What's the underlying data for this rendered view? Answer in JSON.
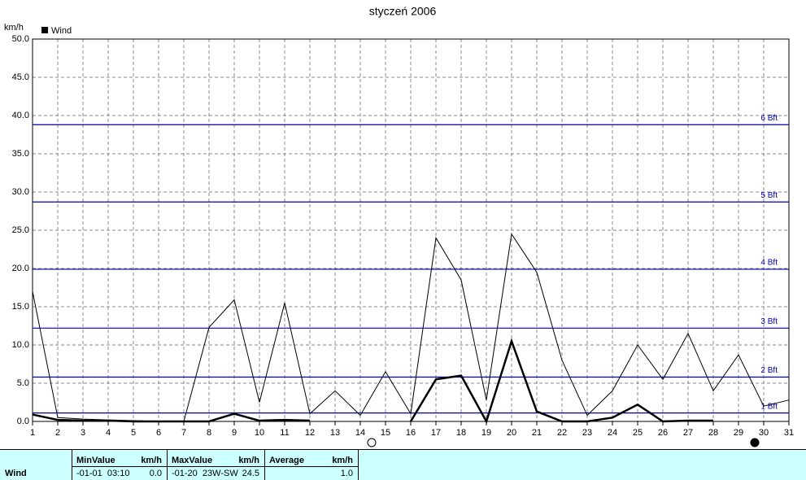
{
  "chart_data": {
    "type": "line",
    "title": "styczeń 2006",
    "y_label": "km/h",
    "x": [
      1,
      2,
      3,
      4,
      5,
      6,
      7,
      8,
      9,
      10,
      11,
      12,
      13,
      14,
      15,
      16,
      17,
      18,
      19,
      20,
      21,
      22,
      23,
      24,
      25,
      26,
      27,
      28,
      29,
      30,
      31
    ],
    "series": [
      {
        "name": "Wind",
        "color": "#000000",
        "values": [
          0.9,
          0.2,
          0.1,
          0.1,
          0,
          0,
          0,
          0,
          1.0,
          0.1,
          0.2,
          0.1,
          null,
          null,
          null,
          0,
          5.5,
          6.0,
          0,
          10.5,
          1.3,
          0,
          0,
          0.5,
          2.2,
          0,
          0.1,
          0.1,
          null,
          null,
          null
        ]
      },
      {
        "color": "#000000",
        "values": [
          17.0,
          0.5,
          0.3,
          0.2,
          0.1,
          0,
          0,
          12.3,
          15.9,
          2.5,
          15.5,
          1.0,
          4.0,
          0.8,
          6.5,
          1.0,
          24.0,
          18.5,
          2.8,
          24.5,
          19.5,
          8.0,
          0.8,
          4.0,
          10.0,
          5.5,
          11.5,
          4.0,
          8.7,
          2.0,
          2.8
        ]
      }
    ],
    "reference_lines": [
      {
        "value": 1.1,
        "label": "1 Bft"
      },
      {
        "value": 5.8,
        "label": "2 Bft"
      },
      {
        "value": 12.2,
        "label": "3 Bft"
      },
      {
        "value": 19.9,
        "label": "4 Bft"
      },
      {
        "value": 28.7,
        "label": "5 Bft"
      },
      {
        "value": 38.8,
        "label": "6 Bft"
      }
    ],
    "reference_color": "#0000a8",
    "xlim": [
      1,
      31
    ],
    "xticks": [
      1,
      2,
      3,
      4,
      5,
      6,
      7,
      8,
      9,
      10,
      11,
      12,
      13,
      14,
      15,
      16,
      17,
      18,
      19,
      20,
      21,
      22,
      23,
      24,
      25,
      26,
      27,
      28,
      29,
      30,
      31
    ],
    "ylim": [
      0,
      50
    ],
    "yticks": [
      {
        "value": 0,
        "label": "0.0"
      },
      {
        "value": 5,
        "label": "5.0"
      },
      {
        "value": 10,
        "label": "10.0"
      },
      {
        "value": 15,
        "label": "15.0"
      },
      {
        "value": 20,
        "label": "20.0"
      },
      {
        "value": 25,
        "label": "25.0"
      },
      {
        "value": 30,
        "label": "30.0"
      },
      {
        "value": 35,
        "label": "35.0"
      },
      {
        "value": 40,
        "label": "40.0"
      },
      {
        "value": 45,
        "label": "45.0"
      },
      {
        "value": 50,
        "label": "50.0"
      }
    ],
    "grid": true
  },
  "summary": {
    "row_label": "Wind",
    "columns": [
      {
        "header": "MinValue",
        "unit": "km/h",
        "detail": "-01-01  03:10",
        "value": "0.0"
      },
      {
        "header": "MaxValue",
        "unit": "km/h",
        "detail": "-01-20  23W-SW",
        "value": "24.5"
      },
      {
        "header": "Average",
        "unit": "km/h",
        "value": "1.0"
      }
    ]
  }
}
